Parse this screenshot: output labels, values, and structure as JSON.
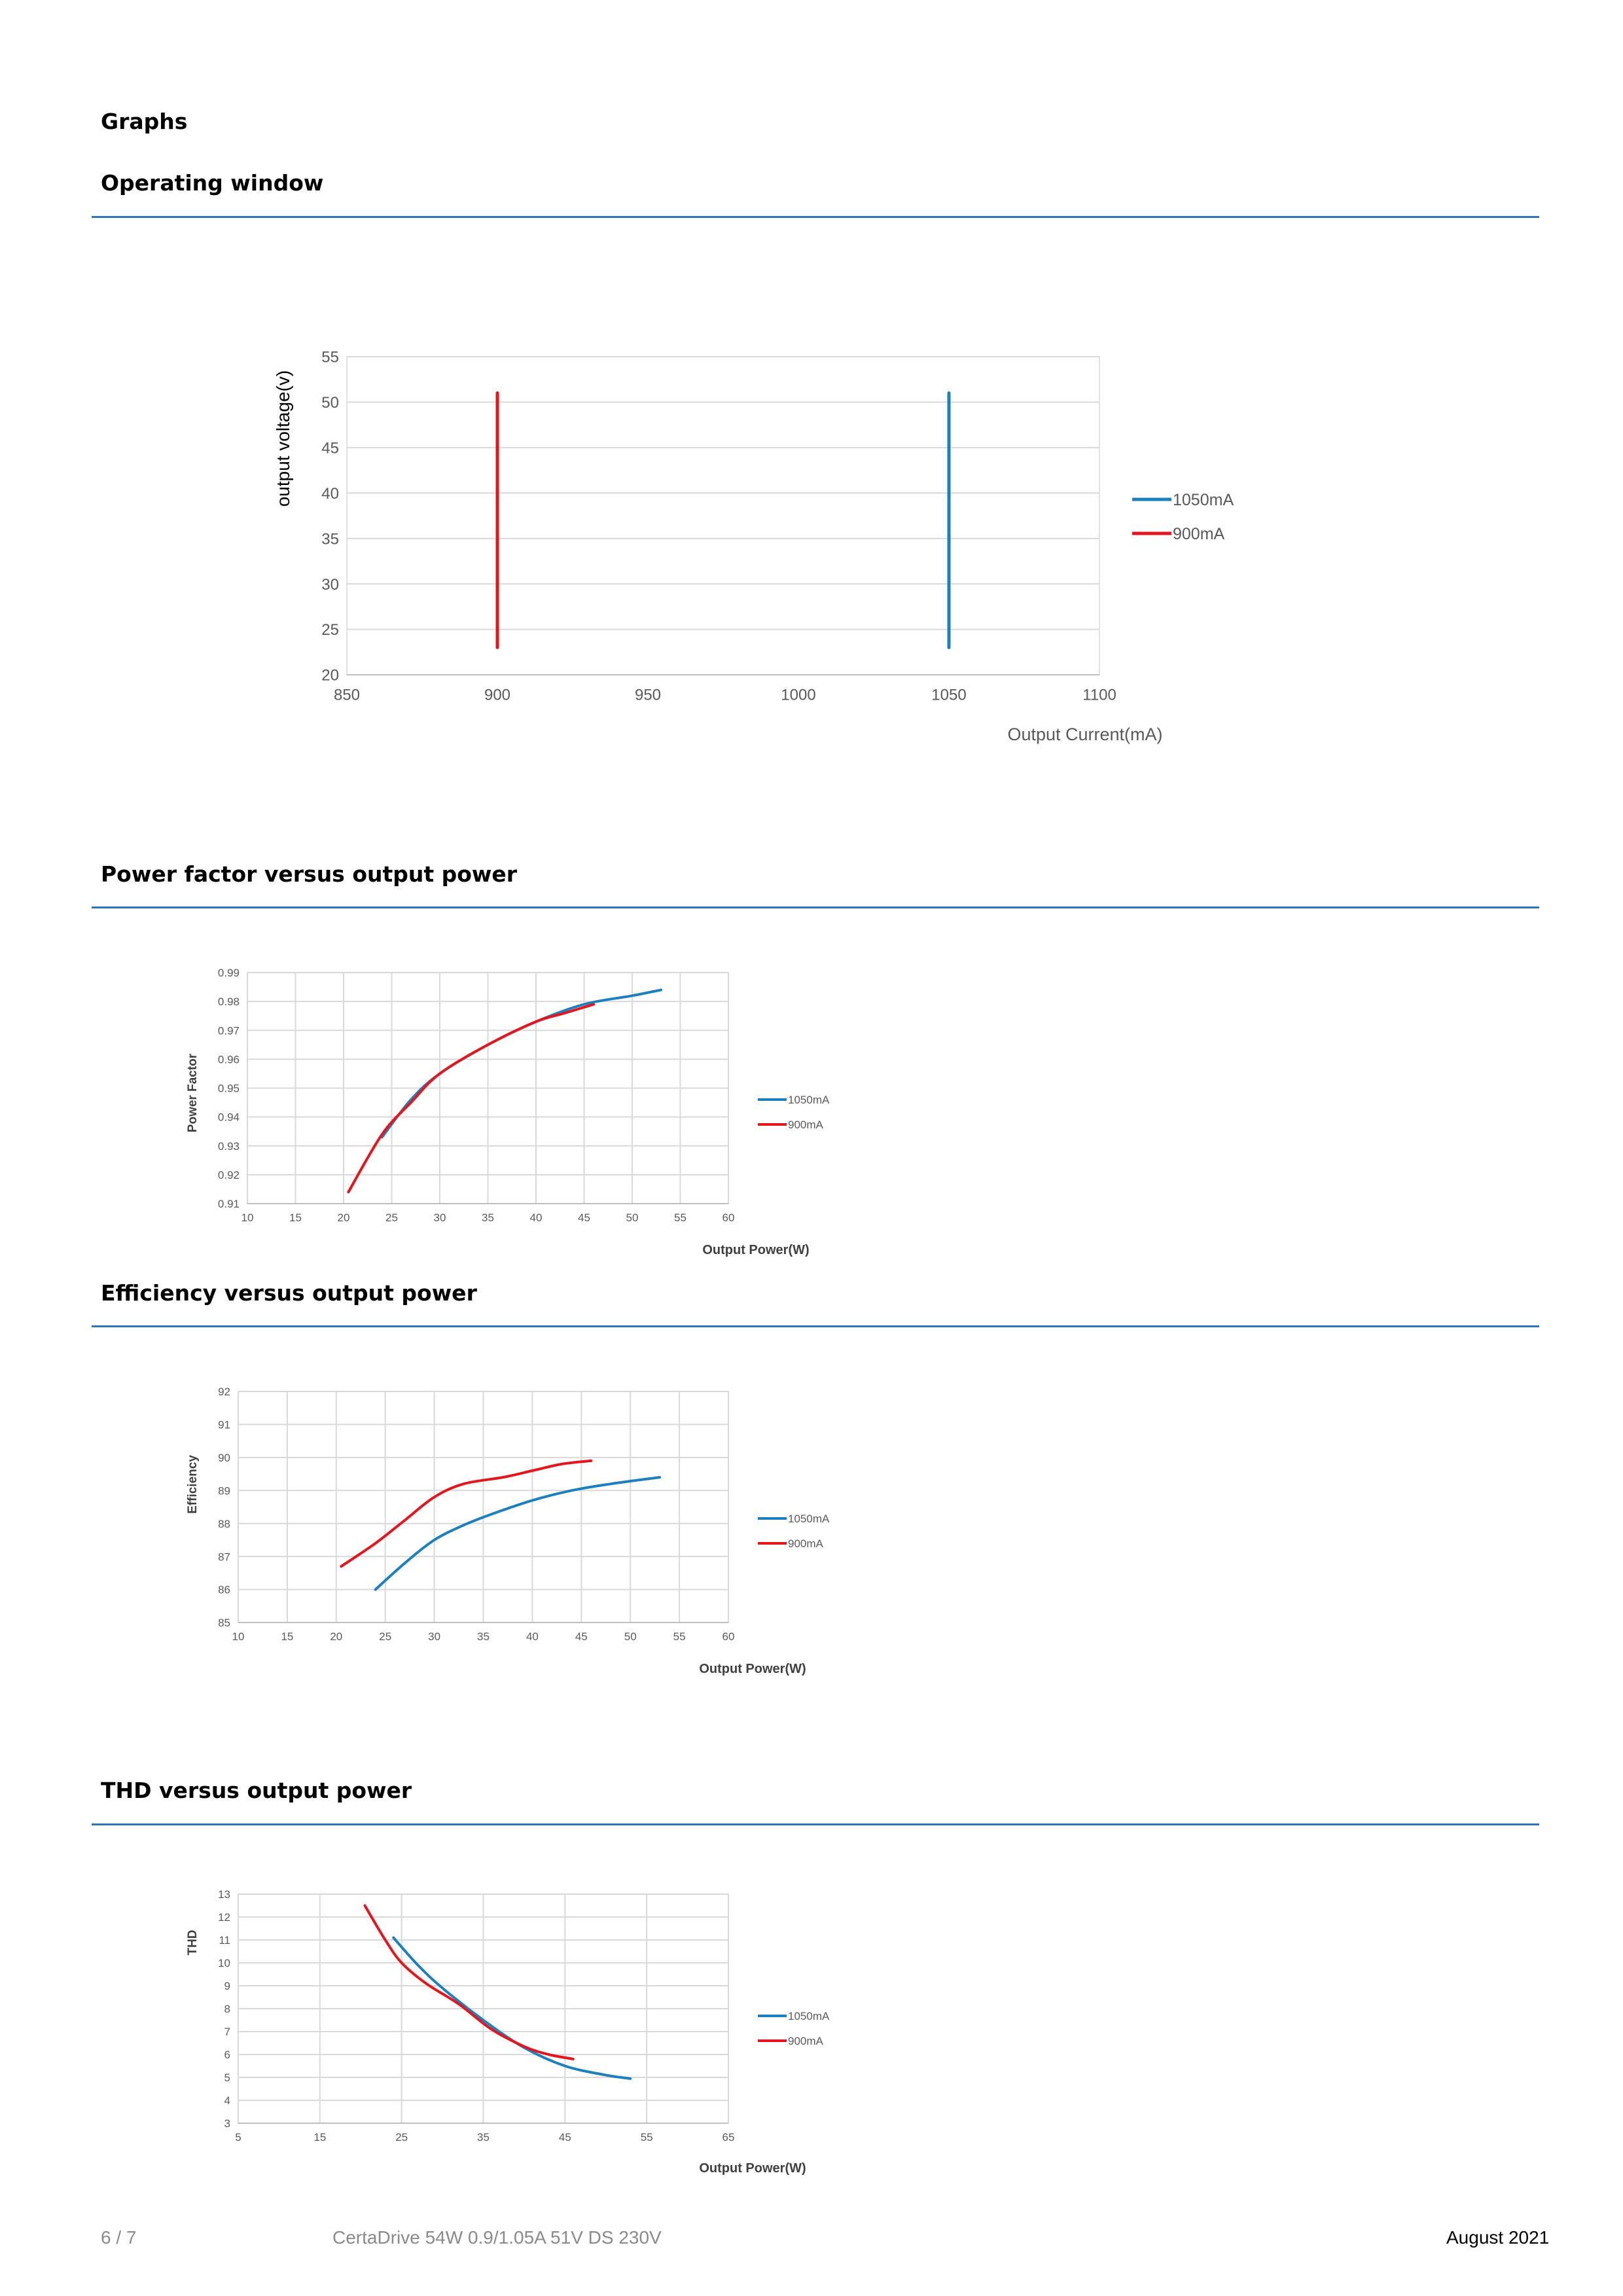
{
  "headings": {
    "graphs": "Graphs",
    "operating_window": "Operating window",
    "pf": "Power factor versus output power",
    "eff": "Efficiency versus output power",
    "thd": "THD versus output power"
  },
  "colors": {
    "rule": "#2f75b5",
    "series_1050": "#1b80c0",
    "series_900": "#e8141c"
  },
  "chart_data": [
    {
      "id": "operating_window",
      "type": "line",
      "title": "",
      "xlabel": "Output Current(mA)",
      "ylabel": "output voltage(v)",
      "xlim": [
        850,
        1100
      ],
      "ylim": [
        20,
        55
      ],
      "x_ticks": [
        "850",
        "900",
        "950",
        "1000",
        "1050",
        "1100"
      ],
      "y_ticks": [
        "20",
        "25",
        "30",
        "35",
        "40",
        "45",
        "50",
        "55"
      ],
      "grid": "horizontal",
      "legend": "right",
      "series": [
        {
          "name": "1050mA",
          "color": "#1b80c0",
          "points": [
            [
              1050,
              23
            ],
            [
              1050,
              51
            ]
          ]
        },
        {
          "name": "900mA",
          "color": "#e8141c",
          "points": [
            [
              900,
              23
            ],
            [
              900,
              51
            ]
          ]
        }
      ]
    },
    {
      "id": "power_factor",
      "type": "line",
      "title": "",
      "xlabel": "Output Power(W)",
      "ylabel": "Power Factor",
      "xlim": [
        10,
        60
      ],
      "ylim": [
        0.91,
        0.99
      ],
      "x_ticks": [
        "10",
        "15",
        "20",
        "25",
        "30",
        "35",
        "40",
        "45",
        "50",
        "55",
        "60"
      ],
      "y_ticks": [
        "0.91",
        "0.92",
        "0.93",
        "0.94",
        "0.95",
        "0.96",
        "0.97",
        "0.98",
        "0.99"
      ],
      "grid": "both",
      "legend": "right",
      "series": [
        {
          "name": "1050mA",
          "color": "#1b80c0",
          "points": [
            [
              24,
              0.933
            ],
            [
              27,
              0.946
            ],
            [
              30,
              0.955
            ],
            [
              35,
              0.965
            ],
            [
              40,
              0.973
            ],
            [
              45,
              0.979
            ],
            [
              50,
              0.982
            ],
            [
              53,
              0.984
            ]
          ]
        },
        {
          "name": "900mA",
          "color": "#e8141c",
          "points": [
            [
              20.5,
              0.914
            ],
            [
              24,
              0.934
            ],
            [
              27,
              0.945
            ],
            [
              30,
              0.955
            ],
            [
              35,
              0.965
            ],
            [
              40,
              0.973
            ],
            [
              43,
              0.976
            ],
            [
              46,
              0.979
            ]
          ]
        }
      ]
    },
    {
      "id": "efficiency",
      "type": "line",
      "title": "",
      "xlabel": "Output Power(W)",
      "ylabel": "Efficiency",
      "xlim": [
        10,
        60
      ],
      "ylim": [
        85,
        92
      ],
      "x_ticks": [
        "10",
        "15",
        "20",
        "25",
        "30",
        "35",
        "40",
        "45",
        "50",
        "55",
        "60"
      ],
      "y_ticks": [
        "85",
        "86",
        "87",
        "88",
        "89",
        "90",
        "91",
        "92"
      ],
      "grid": "both",
      "legend": "right",
      "series": [
        {
          "name": "1050mA",
          "color": "#1b80c0",
          "points": [
            [
              24,
              86.0
            ],
            [
              27,
              86.8
            ],
            [
              30,
              87.5
            ],
            [
              33,
              87.95
            ],
            [
              36,
              88.3
            ],
            [
              40,
              88.7
            ],
            [
              44,
              89.0
            ],
            [
              48,
              89.2
            ],
            [
              53,
              89.4
            ]
          ]
        },
        {
          "name": "900mA",
          "color": "#e8141c",
          "points": [
            [
              20.5,
              86.7
            ],
            [
              24,
              87.4
            ],
            [
              27,
              88.1
            ],
            [
              30,
              88.8
            ],
            [
              33,
              89.2
            ],
            [
              37,
              89.4
            ],
            [
              40,
              89.6
            ],
            [
              43,
              89.8
            ],
            [
              46,
              89.9
            ]
          ]
        }
      ]
    },
    {
      "id": "thd",
      "type": "line",
      "title": "",
      "xlabel": "Output Power(W)",
      "ylabel": "THD",
      "xlim": [
        5,
        65
      ],
      "ylim": [
        3,
        13
      ],
      "x_ticks": [
        "5",
        "15",
        "25",
        "35",
        "45",
        "55",
        "65"
      ],
      "y_ticks": [
        "3",
        "4",
        "5",
        "6",
        "7",
        "8",
        "9",
        "10",
        "11",
        "12",
        "13"
      ],
      "grid": "both",
      "legend": "right",
      "series": [
        {
          "name": "1050mA",
          "color": "#1b80c0",
          "points": [
            [
              24,
              11.1
            ],
            [
              27,
              9.9
            ],
            [
              30,
              8.9
            ],
            [
              35,
              7.5
            ],
            [
              40,
              6.3
            ],
            [
              45,
              5.5
            ],
            [
              50,
              5.1
            ],
            [
              53,
              4.95
            ]
          ]
        },
        {
          "name": "900mA",
          "color": "#e8141c",
          "points": [
            [
              20.5,
              12.5
            ],
            [
              23,
              11.0
            ],
            [
              25,
              10.0
            ],
            [
              28,
              9.1
            ],
            [
              32,
              8.2
            ],
            [
              36,
              7.1
            ],
            [
              40,
              6.35
            ],
            [
              43,
              6.0
            ],
            [
              46,
              5.8
            ]
          ]
        }
      ]
    }
  ],
  "footer": {
    "page": "6 / 7",
    "product": "CertaDrive 54W 0.9/1.05A 51V DS 230V",
    "date": "August 2021"
  }
}
